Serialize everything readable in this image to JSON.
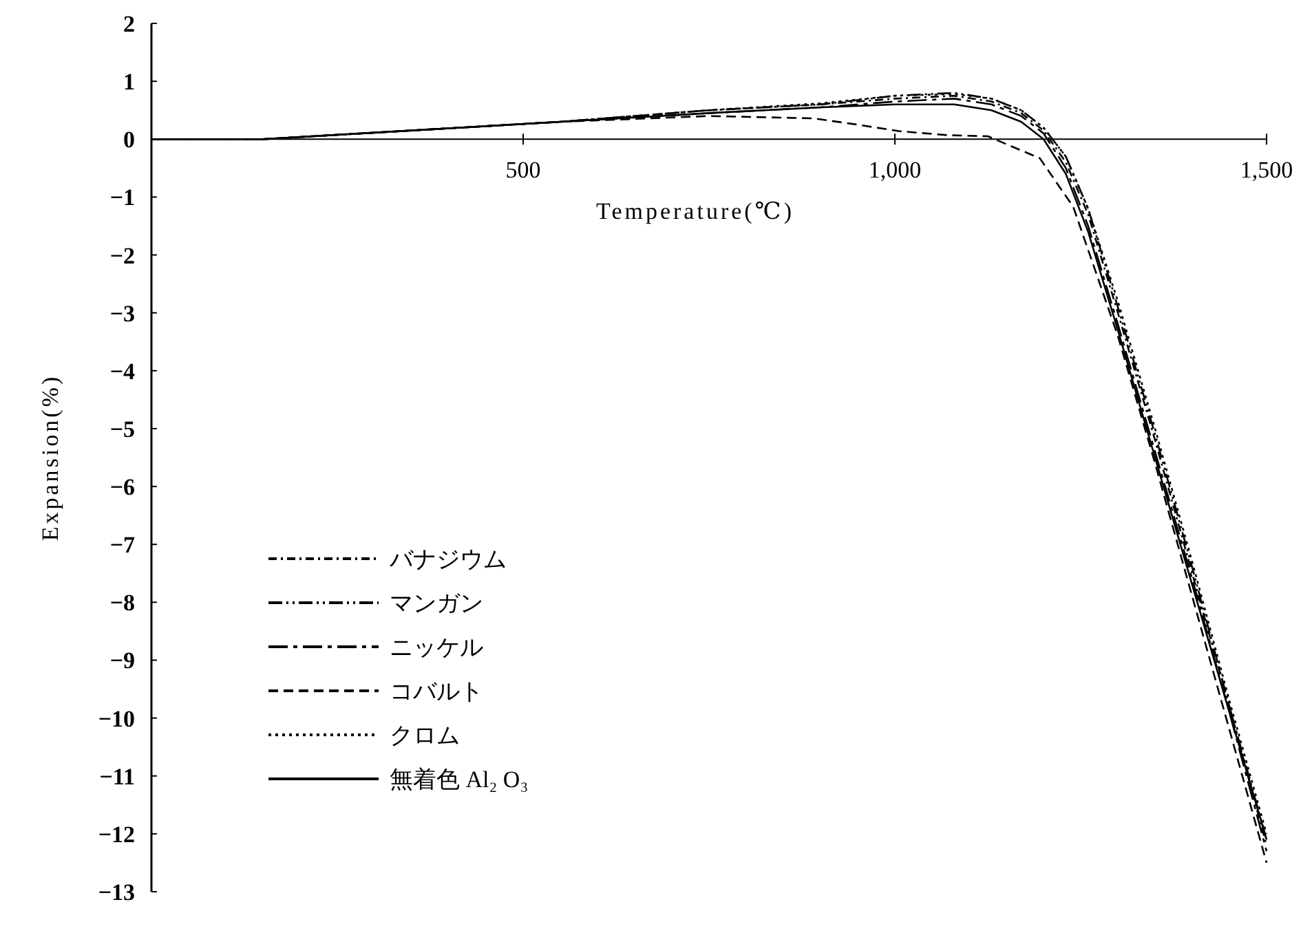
{
  "chart_data": {
    "type": "line",
    "xlabel": "Temperature(℃)",
    "ylabel": "Expansion(%)",
    "xlim": [
      0,
      1500
    ],
    "ylim": [
      -13,
      2
    ],
    "xticks": [
      {
        "value": 500,
        "label": "500"
      },
      {
        "value": 1000,
        "label": "1,000"
      },
      {
        "value": 1500,
        "label": "1,500"
      }
    ],
    "yticks": [
      2,
      1,
      0,
      -1,
      -2,
      -3,
      -4,
      -5,
      -6,
      -7,
      -8,
      -9,
      -10,
      -11,
      -12,
      -13
    ],
    "legend": "bottom left",
    "grid": false,
    "marker": "none",
    "series": [
      {
        "name": "バナジウム",
        "color": "#000000",
        "line_style": "dashdot",
        "x": [
          0,
          150,
          350,
          550,
          750,
          900,
          1000,
          1080,
          1130,
          1170,
          1200,
          1230,
          1260,
          1300,
          1350,
          1400,
          1450,
          1500
        ],
        "values": [
          0,
          0,
          0.15,
          0.3,
          0.5,
          0.6,
          0.7,
          0.75,
          0.65,
          0.45,
          0.15,
          -0.4,
          -1.3,
          -3.0,
          -5.2,
          -7.5,
          -9.8,
          -12.2
        ]
      },
      {
        "name": "マンガン",
        "color": "#000000",
        "line_style": "dashdotdot",
        "x": [
          0,
          150,
          350,
          550,
          750,
          900,
          1000,
          1080,
          1130,
          1170,
          1200,
          1230,
          1260,
          1300,
          1350,
          1400,
          1450,
          1500
        ],
        "values": [
          0,
          0,
          0.15,
          0.3,
          0.5,
          0.6,
          0.75,
          0.8,
          0.7,
          0.5,
          0.2,
          -0.3,
          -1.2,
          -2.9,
          -5.1,
          -7.4,
          -9.8,
          -12.1
        ]
      },
      {
        "name": "ニッケル",
        "color": "#000000",
        "line_style": "longdashdot",
        "x": [
          0,
          150,
          350,
          550,
          750,
          900,
          1000,
          1080,
          1130,
          1170,
          1200,
          1230,
          1260,
          1300,
          1350,
          1400,
          1450,
          1500
        ],
        "values": [
          0,
          0,
          0.15,
          0.3,
          0.45,
          0.55,
          0.65,
          0.7,
          0.6,
          0.4,
          0.1,
          -0.5,
          -1.5,
          -3.2,
          -5.4,
          -7.6,
          -9.9,
          -12.3
        ]
      },
      {
        "name": "コバルト",
        "color": "#000000",
        "line_style": "dashed",
        "x": [
          0,
          150,
          350,
          550,
          750,
          890,
          945,
          1005,
          1070,
          1125,
          1195,
          1240,
          1300,
          1350,
          1400,
          1450,
          1500
        ],
        "values": [
          0,
          0,
          0.15,
          0.3,
          0.4,
          0.36,
          0.26,
          0.14,
          0.07,
          0.05,
          -0.33,
          -1.17,
          -3.4,
          -5.6,
          -7.9,
          -10.2,
          -12.5
        ]
      },
      {
        "name": "クロム",
        "color": "#000000",
        "line_style": "dotted",
        "x": [
          0,
          150,
          350,
          550,
          750,
          900,
          1000,
          1080,
          1130,
          1170,
          1200,
          1230,
          1260,
          1300,
          1350,
          1400,
          1450,
          1500
        ],
        "values": [
          0,
          0,
          0.15,
          0.3,
          0.5,
          0.62,
          0.75,
          0.78,
          0.7,
          0.5,
          0.2,
          -0.3,
          -1.2,
          -2.8,
          -5.0,
          -7.3,
          -9.7,
          -12.0
        ]
      },
      {
        "name": "無着色 Al₂ O₃",
        "color": "#000000",
        "line_style": "solid",
        "x": [
          0,
          150,
          350,
          550,
          750,
          900,
          1000,
          1080,
          1130,
          1170,
          1200,
          1230,
          1260,
          1300,
          1350,
          1400,
          1450,
          1500
        ],
        "values": [
          0,
          0,
          0.15,
          0.3,
          0.45,
          0.55,
          0.6,
          0.6,
          0.5,
          0.3,
          0,
          -0.6,
          -1.6,
          -3.3,
          -5.5,
          -7.7,
          -9.9,
          -12.1
        ]
      }
    ]
  }
}
